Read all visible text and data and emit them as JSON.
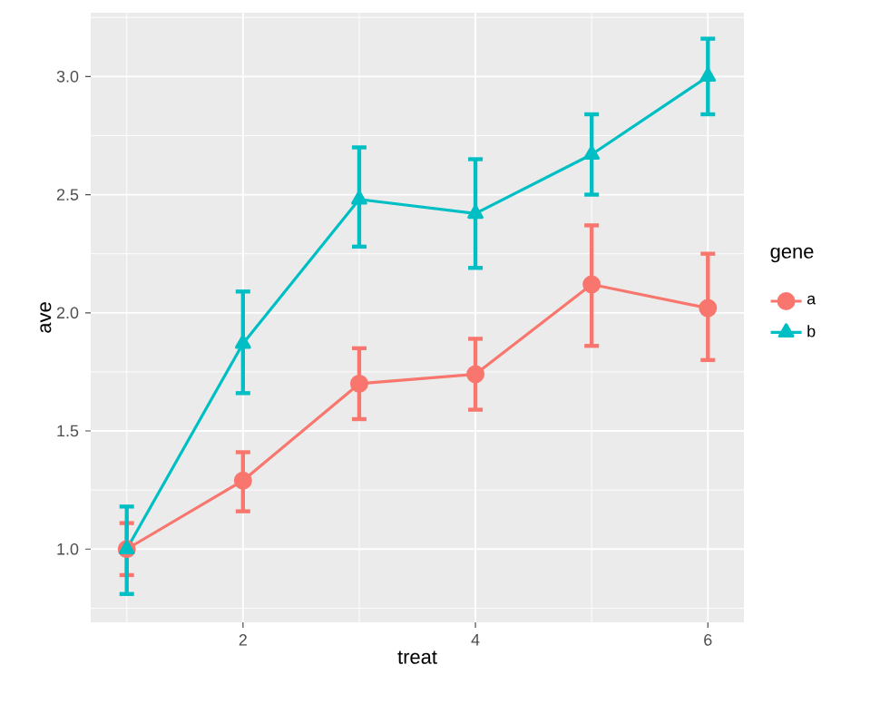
{
  "chart_data": {
    "type": "line",
    "xlabel": "treat",
    "ylabel": "ave",
    "legend_title": "gene",
    "legend": "right",
    "grid": true,
    "line_style": "solid",
    "x": [
      1,
      2,
      3,
      4,
      5,
      6
    ],
    "xlim": [
      0.69,
      6.31
    ],
    "xticks": [
      2,
      4,
      6
    ],
    "ylim": [
      0.69,
      3.27
    ],
    "yticks": [
      {
        "value": 1.0,
        "label": "1.0"
      },
      {
        "value": 1.5,
        "label": "1.5"
      },
      {
        "value": 2.0,
        "label": "2.0"
      },
      {
        "value": 2.5,
        "label": "2.5"
      },
      {
        "value": 3.0,
        "label": "3.0"
      }
    ],
    "series": [
      {
        "name": "a",
        "color": "#f8766d",
        "marker": "circle",
        "values": [
          1.0,
          1.29,
          1.7,
          1.74,
          2.12,
          2.02
        ],
        "errors": [
          [
            0.89,
            1.11
          ],
          [
            1.16,
            1.41
          ],
          [
            1.55,
            1.85
          ],
          [
            1.59,
            1.89
          ],
          [
            1.86,
            2.37
          ],
          [
            1.8,
            2.25
          ]
        ]
      },
      {
        "name": "b",
        "color": "#00bfc4",
        "marker": "triangle",
        "values": [
          1.0,
          1.87,
          2.48,
          2.42,
          2.67,
          3.0
        ],
        "errors": [
          [
            0.81,
            1.18
          ],
          [
            1.66,
            2.09
          ],
          [
            2.28,
            2.7
          ],
          [
            2.19,
            2.65
          ],
          [
            2.5,
            2.84
          ],
          [
            2.84,
            3.16
          ]
        ]
      }
    ]
  }
}
